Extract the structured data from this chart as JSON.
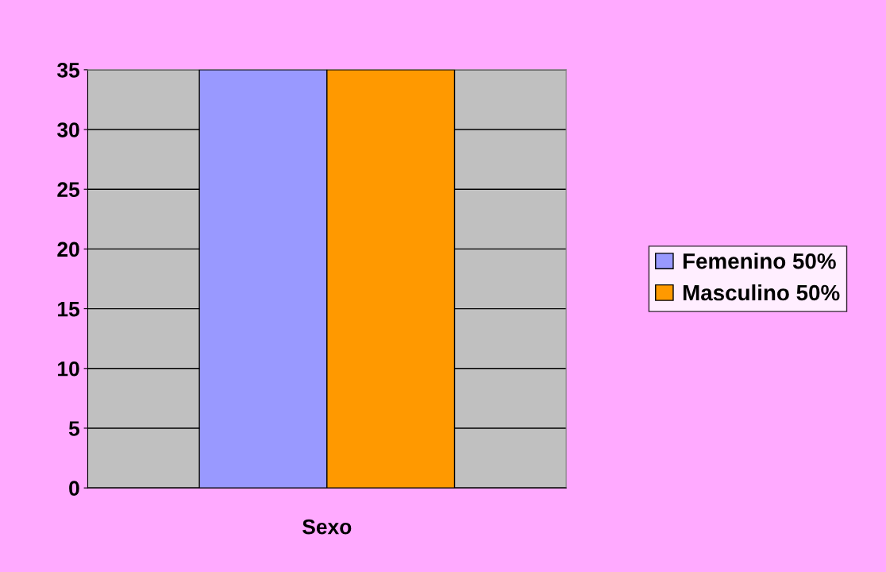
{
  "chart_data": {
    "type": "bar",
    "categories": [
      "Sexo"
    ],
    "series": [
      {
        "name": "Femenino 50%",
        "color": "#9999ff",
        "values": [
          35
        ]
      },
      {
        "name": "Masculino 50%",
        "color": "#ff9900",
        "values": [
          35
        ]
      }
    ],
    "ylim": [
      0,
      35
    ],
    "yticks": [
      0,
      5,
      10,
      15,
      20,
      25,
      30,
      35
    ],
    "grid": "y",
    "legend": "right"
  }
}
